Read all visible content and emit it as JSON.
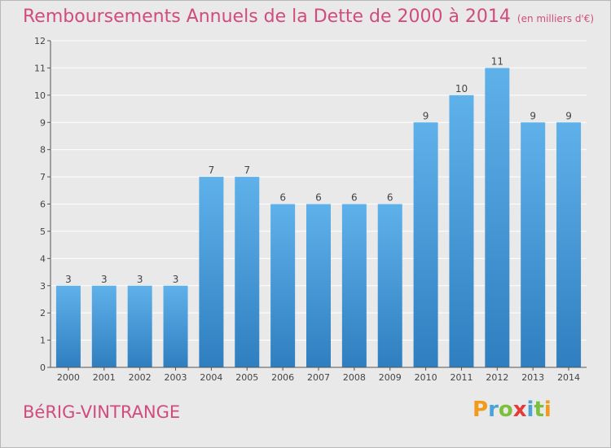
{
  "title": "Remboursements Annuels de la Dette de 2000 à 2014",
  "subtitle": "(en milliers d'€)",
  "commune": "BéRIG-VINTRANGE",
  "logo": {
    "letters": [
      "P",
      "r",
      "o",
      "x",
      "i",
      "t",
      "i"
    ],
    "colors": [
      "#f29a1a",
      "#4aa3d8",
      "#7bbf3a",
      "#e53b3b",
      "#4aa3d8",
      "#7bbf3a",
      "#f29a1a"
    ]
  },
  "colors": {
    "accent": "#d24b7d",
    "bar": "#3f95d8",
    "bar_light": "#5aaee6",
    "grid": "#ffffff"
  },
  "chart_data": {
    "type": "bar",
    "title": "Remboursements Annuels de la Dette de 2000 à 2014",
    "xlabel": "",
    "ylabel": "",
    "categories": [
      "2000",
      "2001",
      "2002",
      "2003",
      "2004",
      "2005",
      "2006",
      "2007",
      "2008",
      "2009",
      "2010",
      "2011",
      "2012",
      "2013",
      "2014"
    ],
    "values": [
      3,
      3,
      3,
      3,
      7,
      7,
      6,
      6,
      6,
      6,
      9,
      10,
      11,
      9,
      9
    ],
    "data_labels": [
      "3",
      "3",
      "3",
      "3",
      "7",
      "7",
      "6",
      "6",
      "6",
      "6",
      "9",
      "10",
      "11",
      "9",
      "9"
    ],
    "ylim": [
      0,
      12
    ],
    "yticks": [
      0,
      1,
      2,
      3,
      4,
      5,
      6,
      7,
      8,
      9,
      10,
      11,
      12
    ],
    "grid": true
  }
}
